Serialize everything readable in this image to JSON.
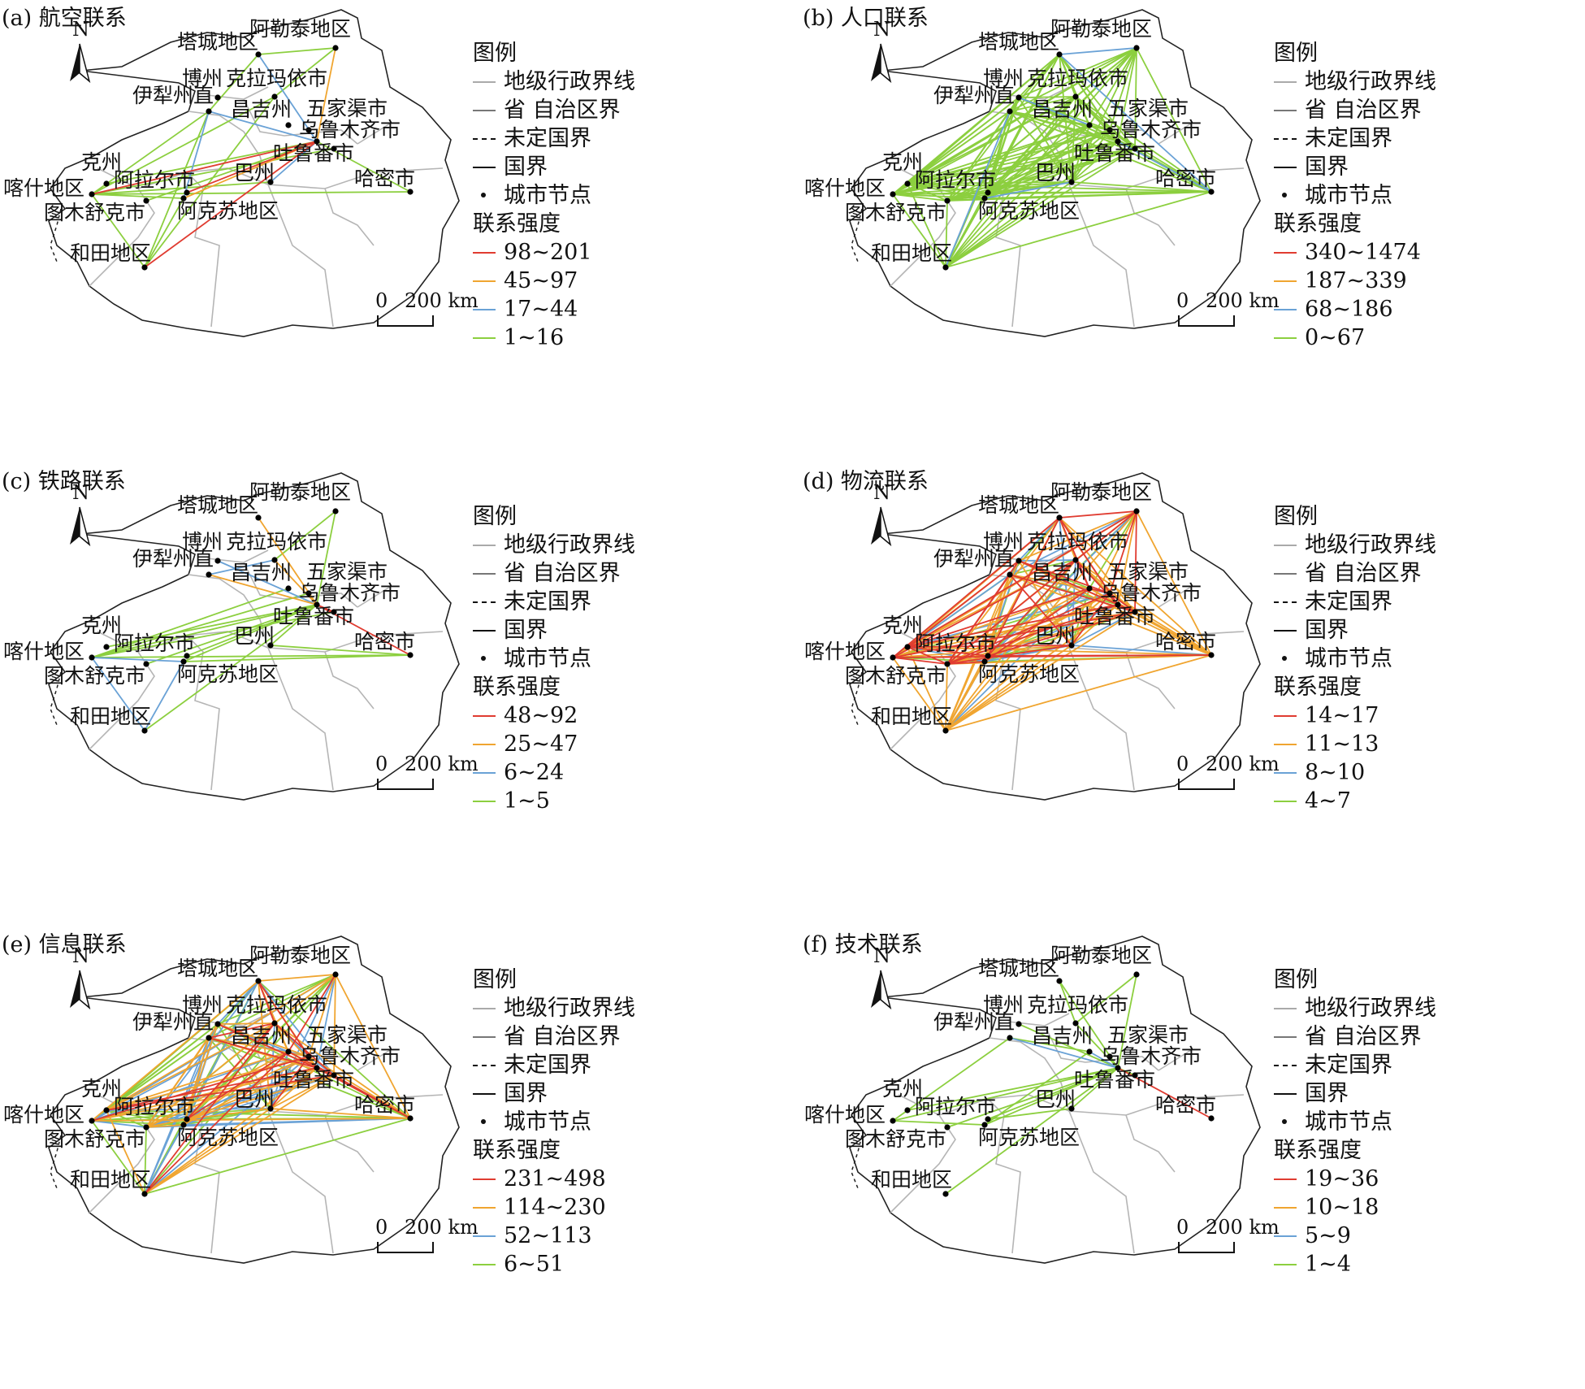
{
  "legend_common": {
    "title": "图例",
    "items": [
      {
        "label": "地级行政界线",
        "style": "thin-gray"
      },
      {
        "label": "省 自治区界",
        "style": "gray"
      },
      {
        "label": "未定国界",
        "style": "dashed"
      },
      {
        "label": "国界",
        "style": "solid-black"
      },
      {
        "label": "城市节点",
        "style": "dot"
      }
    ],
    "strength_title": "联系强度"
  },
  "north_label": "N",
  "class_colors": [
    "#e03c31",
    "#f0a530",
    "#6aa2d6",
    "#8ccf3f"
  ],
  "cities": [
    {
      "id": "altay",
      "name": "阿勒泰地区"
    },
    {
      "id": "tacheng",
      "name": "塔城地区"
    },
    {
      "id": "karamay",
      "name": "克拉玛依市"
    },
    {
      "id": "bozhou",
      "name": "博州"
    },
    {
      "id": "yili",
      "name": "伊犁州直"
    },
    {
      "id": "changji",
      "name": "昌吉州"
    },
    {
      "id": "wujiaqu",
      "name": "五家渠市"
    },
    {
      "id": "urumqi",
      "name": "乌鲁木齐市"
    },
    {
      "id": "turpan",
      "name": "吐鲁番市"
    },
    {
      "id": "hami",
      "name": "哈密市"
    },
    {
      "id": "bazhou",
      "name": "巴州"
    },
    {
      "id": "aksu",
      "name": "阿克苏地区"
    },
    {
      "id": "alar",
      "name": "阿拉尔市"
    },
    {
      "id": "kezhou",
      "name": "克州"
    },
    {
      "id": "kashgar",
      "name": "喀什地区"
    },
    {
      "id": "tumxuk",
      "name": "图木舒克市"
    },
    {
      "id": "hotan",
      "name": "和田地区"
    }
  ],
  "panels": [
    {
      "id": "a",
      "title": "(a) 航空联系",
      "classes": [
        "98~201",
        "45~97",
        "17~44",
        "1~16"
      ],
      "scale": {
        "zero": "0",
        "label": "200 km"
      }
    },
    {
      "id": "b",
      "title": "(b) 人口联系",
      "classes": [
        "340~1474",
        "187~339",
        "68~186",
        "0~67"
      ],
      "scale": {
        "zero": "0",
        "label": "200 km"
      }
    },
    {
      "id": "c",
      "title": "(c) 铁路联系",
      "classes": [
        "48~92",
        "25~47",
        "6~24",
        "1~5"
      ],
      "scale": {
        "zero": "0",
        "label": "200 km"
      }
    },
    {
      "id": "d",
      "title": "(d) 物流联系",
      "classes": [
        "14~17",
        "11~13",
        "8~10",
        "4~7"
      ],
      "scale": {
        "zero": "0",
        "label": "200 km"
      }
    },
    {
      "id": "e",
      "title": "(e) 信息联系",
      "classes": [
        "231~498",
        "114~230",
        "52~113",
        "6~51"
      ],
      "scale": {
        "zero": "0",
        "label": "200 km"
      }
    },
    {
      "id": "f",
      "title": "(f) 技术联系",
      "classes": [
        "19~36",
        "10~18",
        "5~9",
        "1~4"
      ],
      "scale": {
        "zero": "0",
        "label": "200 km"
      }
    }
  ]
}
